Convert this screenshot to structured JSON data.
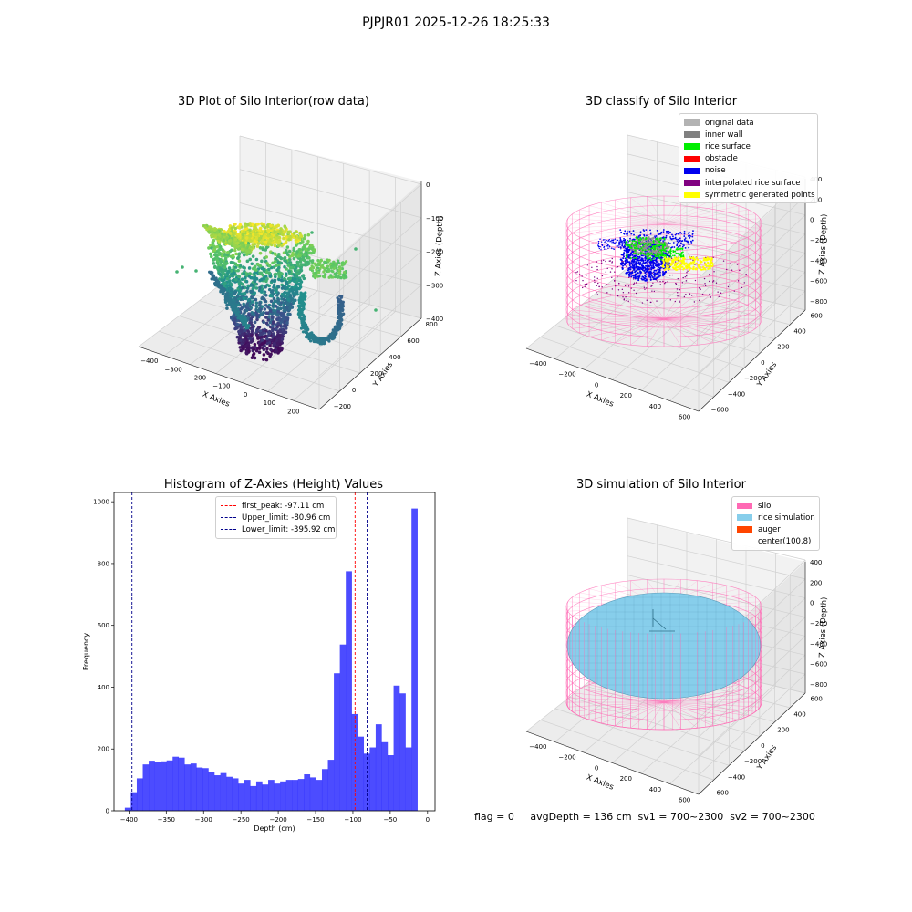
{
  "suptitle": "PJPJR01 2025-12-26 18:25:33",
  "footer": "flag = 0     avgDepth = 136 cm  sv1 = 700~2300  sv2 = 700~2300",
  "chart_data": [
    {
      "type": "scatter",
      "title": "3D Plot of Silo Interior(row data)",
      "xlabel": "X Axies",
      "ylabel": "Y Axies",
      "zlabel": "Z Axies (Depth)",
      "x_ticks": [
        "−400",
        "−300",
        "−200",
        "−100",
        "0",
        "100",
        "200"
      ],
      "y_ticks": [
        "−200",
        "0",
        "200",
        "400",
        "600",
        "800"
      ],
      "z_ticks": [
        "0",
        "−100",
        "−200",
        "−300",
        "−400"
      ],
      "xlim": [
        -450,
        250
      ],
      "ylim": [
        -250,
        850
      ],
      "zlim": [
        -470,
        0
      ],
      "colormap": "viridis"
    },
    {
      "type": "scatter",
      "title": "3D classify of Silo Interior",
      "xlabel": "X Axies",
      "ylabel": "Y Axies",
      "zlabel": "Z Axies (Depth)",
      "x_ticks": [
        "−400",
        "−200",
        "0",
        "200",
        "400",
        "600"
      ],
      "y_ticks": [
        "−600",
        "−400",
        "−200",
        "0",
        "200",
        "400",
        "600"
      ],
      "z_ticks": [
        "400",
        "200",
        "0",
        "−200",
        "−400",
        "−600",
        "−800"
      ],
      "legend": [
        {
          "label": "original data",
          "color": "#b3b3b3"
        },
        {
          "label": "inner wall",
          "color": "#808080"
        },
        {
          "label": "rice surface",
          "color": "#00ee00"
        },
        {
          "label": "obstacle",
          "color": "#ff0000"
        },
        {
          "label": "noise",
          "color": "#0000ee"
        },
        {
          "label": "interpolated rice surface",
          "color": "#800080"
        },
        {
          "label": "symmetric generated points",
          "color": "#ffff00"
        }
      ],
      "silo_color": "#ff69b4"
    },
    {
      "type": "bar",
      "title": "Histogram of Z-Axies (Height) Values",
      "xlabel": "Depth (cm)",
      "ylabel": "Frequency",
      "xlim": [
        -420,
        10
      ],
      "ylim": [
        0,
        1030
      ],
      "x_ticks": [
        -400,
        -350,
        -300,
        -250,
        -200,
        -150,
        -100,
        -50,
        0
      ],
      "y_ticks": [
        0,
        200,
        400,
        600,
        800,
        1000
      ],
      "bin_start": -405.5,
      "bin_width": 8,
      "values": [
        10,
        60,
        105,
        150,
        162,
        158,
        160,
        163,
        175,
        172,
        150,
        153,
        140,
        138,
        125,
        115,
        122,
        110,
        105,
        88,
        100,
        80,
        95,
        85,
        100,
        88,
        95,
        100,
        100,
        103,
        118,
        108,
        100,
        135,
        165,
        445,
        538,
        775,
        313,
        240,
        185,
        205,
        280,
        222,
        180,
        405,
        380,
        205,
        978
      ],
      "bar_color": "#0000ff",
      "lines": [
        {
          "label": "first_peak: -97.11 cm",
          "x": -97.11,
          "color": "#ff0000"
        },
        {
          "label": "Upper_limit: -80.96 cm",
          "x": -80.96,
          "color": "#00008b"
        },
        {
          "label": "Lower_limit: -395.92 cm",
          "x": -395.92,
          "color": "#00008b"
        }
      ]
    },
    {
      "type": "scatter",
      "title": "3D simulation of Silo Interior",
      "xlabel": "X Axies",
      "ylabel": "Y Axies",
      "zlabel": "Z Axies (Depth)",
      "x_ticks": [
        "−400",
        "−200",
        "0",
        "200",
        "400",
        "600"
      ],
      "y_ticks": [
        "−600",
        "−400",
        "−200",
        "0",
        "200",
        "400",
        "600"
      ],
      "z_ticks": [
        "400",
        "200",
        "0",
        "−200",
        "−400",
        "−600",
        "−800"
      ],
      "legend": [
        {
          "label": "silo",
          "color": "#ff69b4"
        },
        {
          "label": "rice simulation",
          "color": "#87ceeb"
        },
        {
          "label": "auger",
          "color": "#ff4500"
        },
        {
          "label": "center(100,8)",
          "color": "#ffffff"
        }
      ]
    }
  ]
}
